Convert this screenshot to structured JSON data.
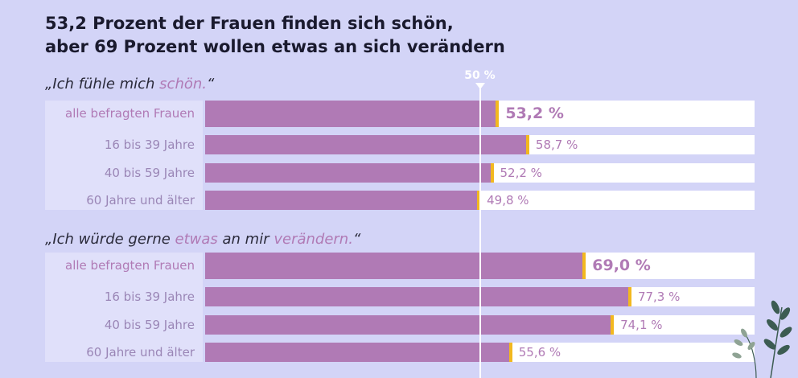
{
  "title": [
    "53,2 Prozent der Frauen finden sich schön,",
    "aber 69 Prozent wollen etwas an sich verändern"
  ],
  "reference": {
    "label": "50 %",
    "value": 50
  },
  "colors": {
    "background": "#d3d4f7",
    "bar": "#b07ab5",
    "accent": "#f2b81f",
    "track": "#ffffff",
    "label_column": "#e0e0fa"
  },
  "chart_data": [
    {
      "type": "bar",
      "orientation": "horizontal",
      "title_parts": [
        {
          "text": "„Ich fühle mich ",
          "hl": false
        },
        {
          "text": "schön.",
          "hl": true
        },
        {
          "text": "“",
          "hl": false
        }
      ],
      "categories": [
        "alle befragten Frauen",
        "16 bis 39 Jahre",
        "40 bis 59 Jahre",
        "60 Jahre und älter"
      ],
      "values": [
        53.2,
        58.7,
        52.2,
        49.8
      ],
      "value_labels": [
        "53,2 %",
        "58,7 %",
        "52,2 %",
        "49,8 %"
      ],
      "xlim": [
        0,
        100
      ],
      "reference_value": 50
    },
    {
      "type": "bar",
      "orientation": "horizontal",
      "title_parts": [
        {
          "text": "„Ich würde gerne ",
          "hl": false
        },
        {
          "text": "etwas",
          "hl": true
        },
        {
          "text": " an mir ",
          "hl": false
        },
        {
          "text": "verändern.",
          "hl": true
        },
        {
          "text": "“",
          "hl": false
        }
      ],
      "categories": [
        "alle befragten Frauen",
        "16 bis 39 Jahre",
        "40 bis 59 Jahre",
        "60 Jahre und älter"
      ],
      "values": [
        69.0,
        77.3,
        74.1,
        55.6
      ],
      "value_labels": [
        "69,0 %",
        "77,3 %",
        "74,1 %",
        "55,6 %"
      ],
      "xlim": [
        0,
        100
      ],
      "reference_value": 50
    }
  ]
}
